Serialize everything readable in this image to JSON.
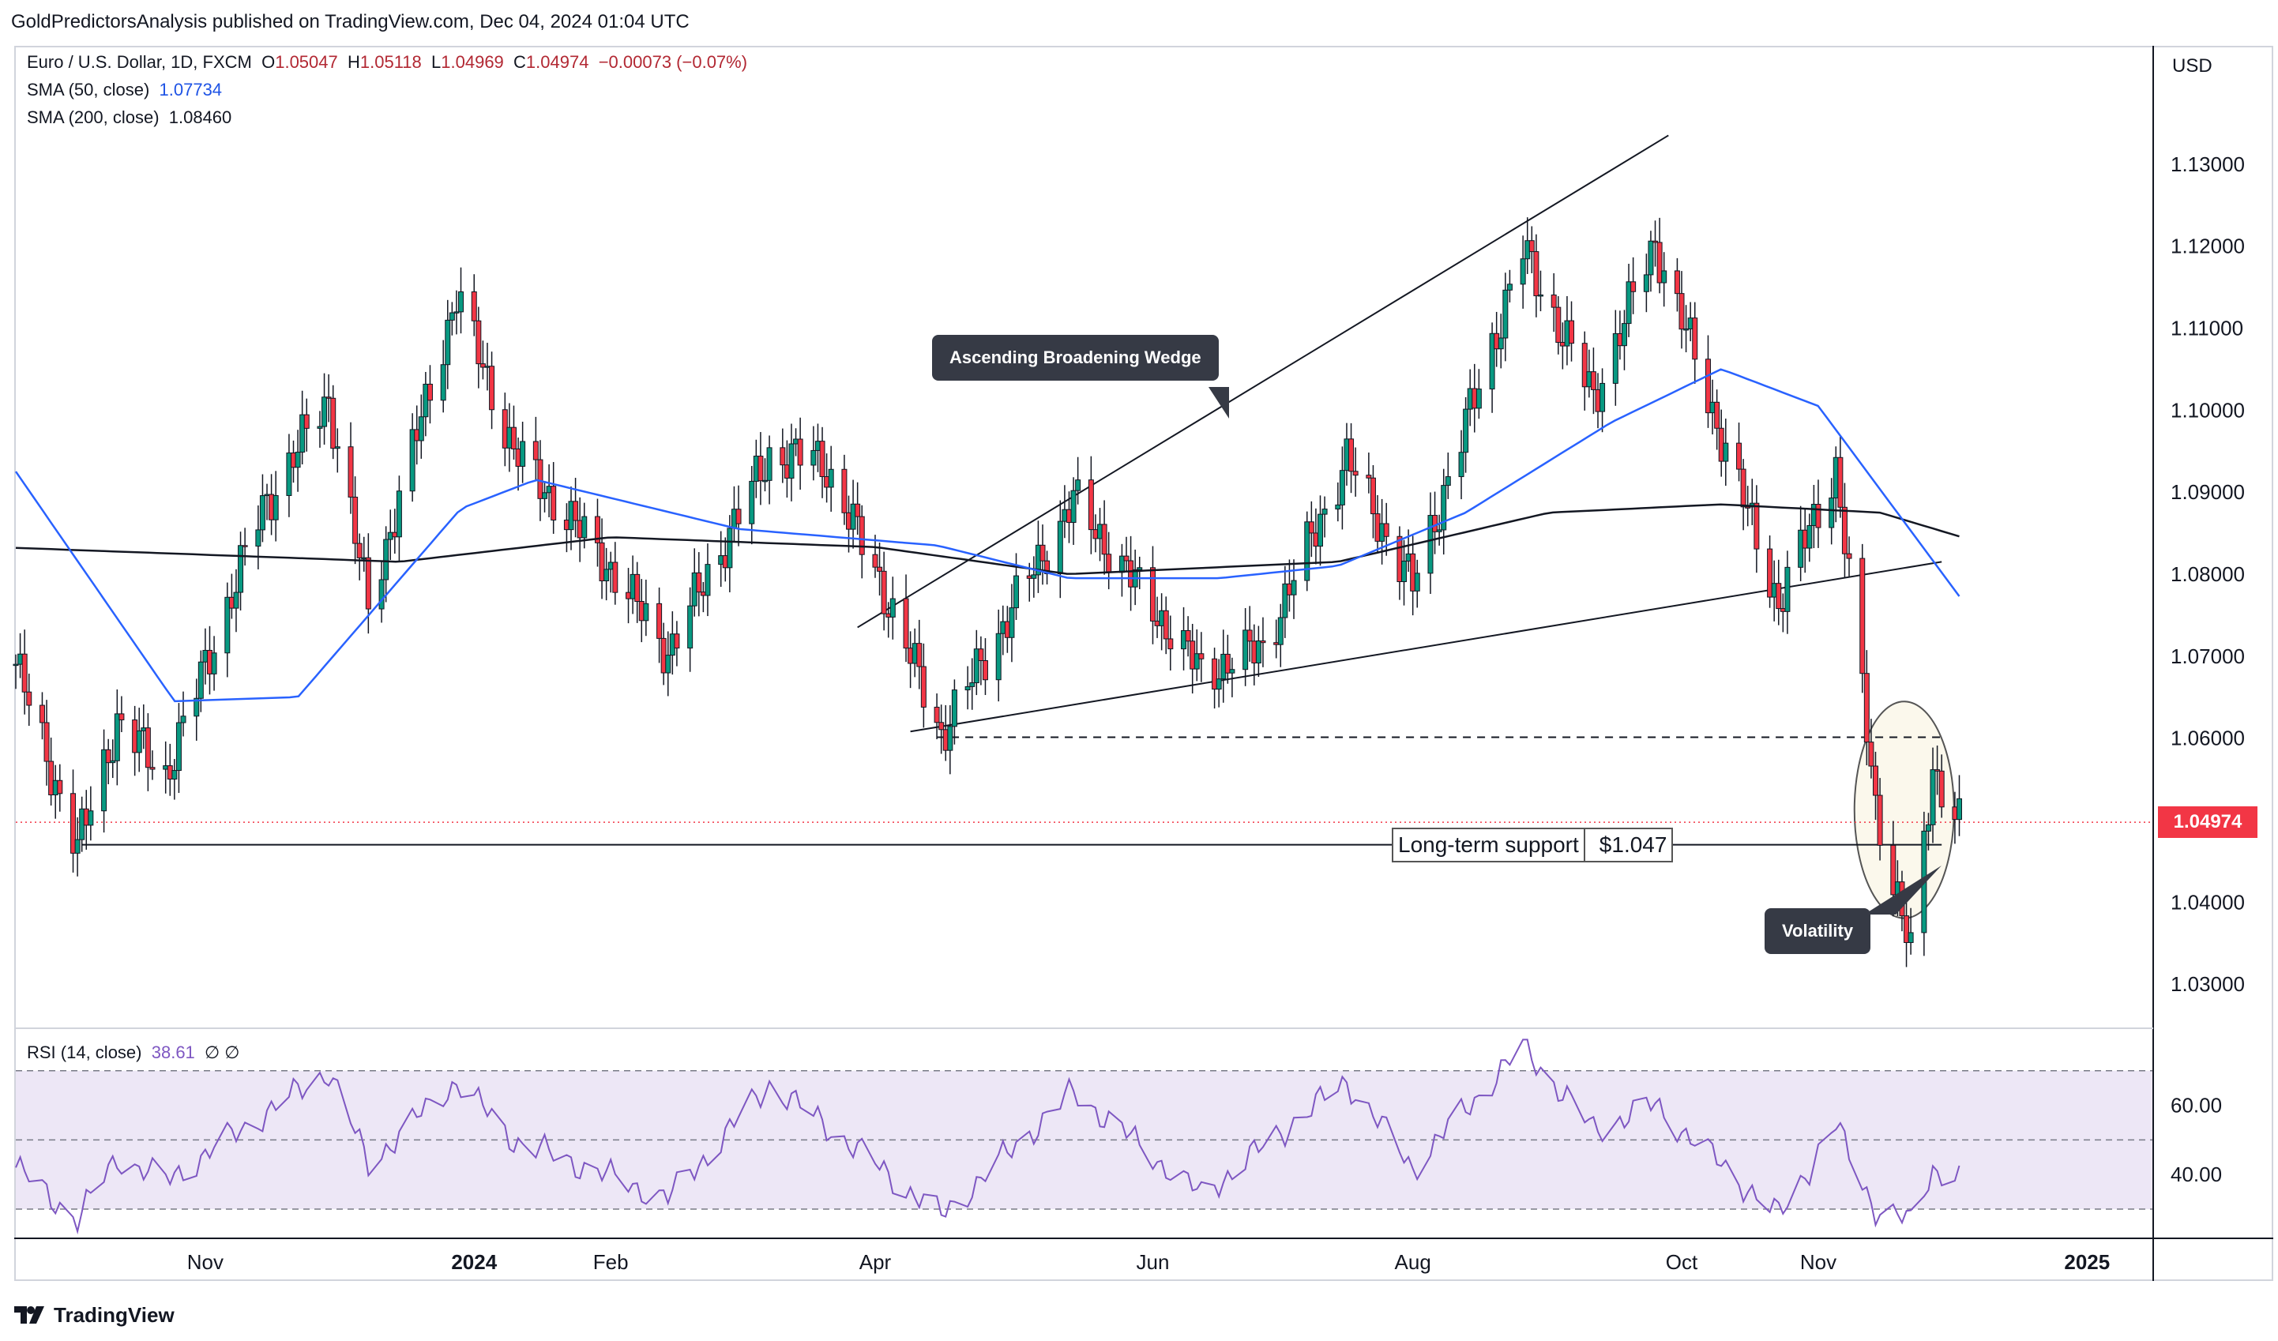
{
  "header": {
    "publisher_line": "GoldPredictorsAnalysis published on TradingView.com, Dec 04, 2024 01:04 UTC"
  },
  "legend": {
    "symbol": "Euro / U.S. Dollar, 1D, FXCM",
    "ohlc": {
      "o_label": "O",
      "o": "1.05047",
      "h_label": "H",
      "h": "1.05118",
      "l_label": "L",
      "l": "1.04969",
      "c_label": "C",
      "c": "1.04974",
      "change": "−0.00073 (−0.07%)"
    },
    "sma50": {
      "label": "SMA (50, close)",
      "value": "1.07734",
      "color": "#2962ff"
    },
    "sma200": {
      "label": "SMA (200, close)",
      "value": "1.08460",
      "color": "#131722"
    }
  },
  "rsi_legend": {
    "label": "RSI (14, close)",
    "value": "38.61",
    "extra": "∅  ∅"
  },
  "currency": "USD",
  "last_price": "1.04974",
  "annotations": {
    "wedge": "Ascending Broadening Wedge",
    "support_text": "Long-term support",
    "support_value": "$1.047",
    "volatility": "Volatility"
  },
  "footer": {
    "brand": "TradingView"
  },
  "colors": {
    "up": "#089981",
    "down": "#f23645",
    "sma50": "#2962ff",
    "sma200": "#131722",
    "rsi": "#7e57c2",
    "rsi_band": "#ede7f6"
  },
  "chart_data": [
    {
      "type": "candlestick",
      "title": "Euro / U.S. Dollar, 1D, FXCM",
      "y_unit": "USD",
      "ylim": [
        1.025,
        1.1425
      ],
      "y_ticks": [
        "1.03000",
        "1.04000",
        "1.05000",
        "1.06000",
        "1.07000",
        "1.08000",
        "1.09000",
        "1.10000",
        "1.11000",
        "1.12000",
        "1.13000"
      ],
      "x_ticks": [
        {
          "label": "Nov",
          "date": "2023-11-01"
        },
        {
          "label": "2024",
          "date": "2024-01-01"
        },
        {
          "label": "Feb",
          "date": "2024-02-01"
        },
        {
          "label": "Apr",
          "date": "2024-04-01"
        },
        {
          "label": "Jun",
          "date": "2024-06-03"
        },
        {
          "label": "Aug",
          "date": "2024-08-01"
        },
        {
          "label": "Oct",
          "date": "2024-10-01"
        },
        {
          "label": "Nov",
          "date": "2024-11-01"
        },
        {
          "label": "2025",
          "date": "2025-01-01"
        }
      ],
      "price_path": [
        {
          "date": "2023-09-19",
          "close": 1.069
        },
        {
          "date": "2023-10-03",
          "close": 1.0465
        },
        {
          "date": "2023-10-12",
          "close": 1.062
        },
        {
          "date": "2023-10-23",
          "close": 1.0555
        },
        {
          "date": "2023-11-14",
          "close": 1.088
        },
        {
          "date": "2023-11-29",
          "close": 1.1015
        },
        {
          "date": "2023-12-08",
          "close": 1.076
        },
        {
          "date": "2023-12-28",
          "close": 1.114
        },
        {
          "date": "2024-01-10",
          "close": 1.095
        },
        {
          "date": "2024-02-02",
          "close": 1.08
        },
        {
          "date": "2024-02-14",
          "close": 1.0705
        },
        {
          "date": "2024-03-08",
          "close": 1.0945
        },
        {
          "date": "2024-03-20",
          "close": 1.094
        },
        {
          "date": "2024-04-03",
          "close": 1.078
        },
        {
          "date": "2024-04-16",
          "close": 1.0605
        },
        {
          "date": "2024-05-16",
          "close": 1.089
        },
        {
          "date": "2024-06-14",
          "close": 1.068
        },
        {
          "date": "2024-06-28",
          "close": 1.071
        },
        {
          "date": "2024-07-17",
          "close": 1.094
        },
        {
          "date": "2024-08-01",
          "close": 1.0785
        },
        {
          "date": "2024-08-26",
          "close": 1.1195
        },
        {
          "date": "2024-09-11",
          "close": 1.1015
        },
        {
          "date": "2024-09-25",
          "close": 1.1205
        },
        {
          "date": "2024-10-15",
          "close": 1.089
        },
        {
          "date": "2024-10-23",
          "close": 1.0765
        },
        {
          "date": "2024-11-05",
          "close": 1.093
        },
        {
          "date": "2024-11-14",
          "close": 1.052
        },
        {
          "date": "2024-11-22",
          "close": 1.0335
        },
        {
          "date": "2024-11-27",
          "close": 1.0565
        },
        {
          "date": "2024-12-03",
          "close": 1.04974
        }
      ],
      "sma50_path": [
        {
          "date": "2023-09-19",
          "value": 1.0925
        },
        {
          "date": "2023-10-25",
          "value": 1.0645
        },
        {
          "date": "2023-11-22",
          "value": 1.065
        },
        {
          "date": "2023-12-29",
          "value": 1.088
        },
        {
          "date": "2024-01-15",
          "value": 1.0915
        },
        {
          "date": "2024-03-01",
          "value": 1.0855
        },
        {
          "date": "2024-04-15",
          "value": 1.0835
        },
        {
          "date": "2024-05-15",
          "value": 1.0795
        },
        {
          "date": "2024-06-18",
          "value": 1.0795
        },
        {
          "date": "2024-07-15",
          "value": 1.081
        },
        {
          "date": "2024-08-13",
          "value": 1.0875
        },
        {
          "date": "2024-09-15",
          "value": 1.0985
        },
        {
          "date": "2024-10-10",
          "value": 1.105
        },
        {
          "date": "2024-11-01",
          "value": 1.1005
        },
        {
          "date": "2024-12-03",
          "value": 1.0773
        }
      ],
      "sma200_path": [
        {
          "date": "2023-09-19",
          "value": 1.0832
        },
        {
          "date": "2023-12-15",
          "value": 1.0815
        },
        {
          "date": "2024-02-01",
          "value": 1.0845
        },
        {
          "date": "2024-04-01",
          "value": 1.0833
        },
        {
          "date": "2024-05-15",
          "value": 1.08
        },
        {
          "date": "2024-07-15",
          "value": 1.0815
        },
        {
          "date": "2024-09-01",
          "value": 1.0875
        },
        {
          "date": "2024-10-10",
          "value": 1.0885
        },
        {
          "date": "2024-11-15",
          "value": 1.0875
        },
        {
          "date": "2024-12-03",
          "value": 1.0846
        }
      ],
      "trendlines": [
        {
          "name": "wedge-upper",
          "from": {
            "date": "2024-03-28",
            "value": 1.0735
          },
          "to": {
            "date": "2024-09-28",
            "value": 1.1335
          }
        },
        {
          "name": "wedge-lower",
          "from": {
            "date": "2024-04-09",
            "value": 1.0608
          },
          "to": {
            "date": "2024-11-29",
            "value": 1.0815
          }
        },
        {
          "name": "long-term-support",
          "from": {
            "date": "2023-10-04",
            "value": 1.047
          },
          "to": {
            "date": "2024-11-29",
            "value": 1.047
          }
        },
        {
          "name": "wedge-low-dashed",
          "from": {
            "date": "2024-04-15",
            "value": 1.0601
          },
          "to": {
            "date": "2024-11-30",
            "value": 1.0601
          }
        }
      ],
      "volatility_zone": {
        "from_date": "2024-11-11",
        "to_date": "2024-11-30",
        "low": 1.039,
        "high": 1.0635
      }
    },
    {
      "type": "line",
      "title": "RSI (14, close)",
      "ylim": [
        22,
        80
      ],
      "y_ticks": [
        "40.00",
        "60.00"
      ],
      "bands": [
        30,
        50,
        70
      ],
      "points": [
        {
          "date": "2023-09-19",
          "value": 42
        },
        {
          "date": "2023-10-03",
          "value": 27
        },
        {
          "date": "2023-10-12",
          "value": 45
        },
        {
          "date": "2023-10-23",
          "value": 38
        },
        {
          "date": "2023-11-14",
          "value": 57
        },
        {
          "date": "2023-11-29",
          "value": 70
        },
        {
          "date": "2023-12-08",
          "value": 43
        },
        {
          "date": "2023-12-28",
          "value": 67
        },
        {
          "date": "2024-01-10",
          "value": 50
        },
        {
          "date": "2024-02-14",
          "value": 33
        },
        {
          "date": "2024-03-08",
          "value": 66
        },
        {
          "date": "2024-03-20",
          "value": 55
        },
        {
          "date": "2024-04-16",
          "value": 28
        },
        {
          "date": "2024-05-16",
          "value": 64
        },
        {
          "date": "2024-06-14",
          "value": 34
        },
        {
          "date": "2024-07-17",
          "value": 67
        },
        {
          "date": "2024-08-01",
          "value": 42
        },
        {
          "date": "2024-08-26",
          "value": 77
        },
        {
          "date": "2024-09-11",
          "value": 53
        },
        {
          "date": "2024-09-25",
          "value": 60
        },
        {
          "date": "2024-10-23",
          "value": 28
        },
        {
          "date": "2024-11-05",
          "value": 54
        },
        {
          "date": "2024-11-14",
          "value": 30
        },
        {
          "date": "2024-11-22",
          "value": 26
        },
        {
          "date": "2024-11-27",
          "value": 42
        },
        {
          "date": "2024-12-03",
          "value": 38.61
        }
      ]
    }
  ]
}
